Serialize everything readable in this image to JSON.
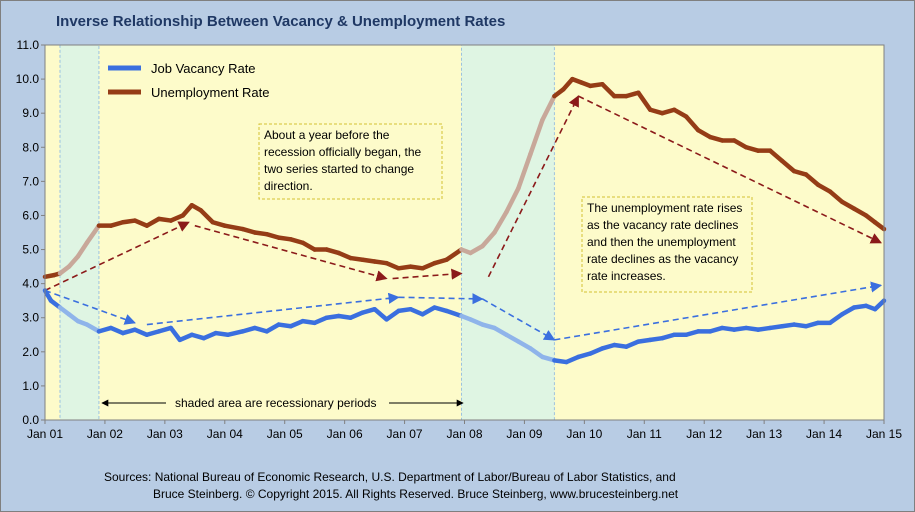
{
  "chart_data": {
    "type": "line",
    "title": "Inverse Relationship Between Vacancy & Unemployment Rates",
    "ylim": [
      0,
      11
    ],
    "y_ticks": [
      "0.0",
      "1.0",
      "2.0",
      "3.0",
      "4.0",
      "5.0",
      "6.0",
      "7.0",
      "8.0",
      "9.0",
      "10.0",
      "11.0"
    ],
    "x_ticks": [
      "Jan 01",
      "Jan 02",
      "Jan 03",
      "Jan 04",
      "Jan 05",
      "Jan 06",
      "Jan 07",
      "Jan 08",
      "Jan 09",
      "Jan 10",
      "Jan 11",
      "Jan 12",
      "Jan 13",
      "Jan 14",
      "Jan 15"
    ],
    "x_range": [
      2001.0,
      2015.0
    ],
    "recessions": [
      [
        2001.25,
        2001.9
      ],
      [
        2007.95,
        2009.5
      ]
    ],
    "series": [
      {
        "name": "Job Vacancy Rate",
        "color": "#3a6fdf",
        "recession_color": "#8fb4ea",
        "points": [
          [
            2001.0,
            3.8
          ],
          [
            2001.1,
            3.5
          ],
          [
            2001.25,
            3.3
          ],
          [
            2001.4,
            3.1
          ],
          [
            2001.55,
            2.9
          ],
          [
            2001.7,
            2.8
          ],
          [
            2001.9,
            2.6
          ],
          [
            2002.1,
            2.7
          ],
          [
            2002.3,
            2.55
          ],
          [
            2002.5,
            2.65
          ],
          [
            2002.7,
            2.5
          ],
          [
            2002.9,
            2.6
          ],
          [
            2003.1,
            2.7
          ],
          [
            2003.25,
            2.35
          ],
          [
            2003.45,
            2.5
          ],
          [
            2003.65,
            2.4
          ],
          [
            2003.85,
            2.55
          ],
          [
            2004.05,
            2.5
          ],
          [
            2004.3,
            2.6
          ],
          [
            2004.5,
            2.7
          ],
          [
            2004.7,
            2.6
          ],
          [
            2004.9,
            2.8
          ],
          [
            2005.1,
            2.75
          ],
          [
            2005.3,
            2.9
          ],
          [
            2005.5,
            2.85
          ],
          [
            2005.7,
            3.0
          ],
          [
            2005.9,
            3.05
          ],
          [
            2006.1,
            3.0
          ],
          [
            2006.3,
            3.15
          ],
          [
            2006.5,
            3.25
          ],
          [
            2006.7,
            2.95
          ],
          [
            2006.9,
            3.2
          ],
          [
            2007.1,
            3.25
          ],
          [
            2007.3,
            3.1
          ],
          [
            2007.5,
            3.3
          ],
          [
            2007.7,
            3.2
          ],
          [
            2007.95,
            3.05
          ],
          [
            2008.1,
            2.95
          ],
          [
            2008.3,
            2.8
          ],
          [
            2008.5,
            2.7
          ],
          [
            2008.7,
            2.5
          ],
          [
            2008.9,
            2.3
          ],
          [
            2009.1,
            2.1
          ],
          [
            2009.3,
            1.85
          ],
          [
            2009.5,
            1.75
          ],
          [
            2009.7,
            1.7
          ],
          [
            2009.9,
            1.85
          ],
          [
            2010.1,
            1.95
          ],
          [
            2010.3,
            2.1
          ],
          [
            2010.5,
            2.2
          ],
          [
            2010.7,
            2.15
          ],
          [
            2010.9,
            2.3
          ],
          [
            2011.1,
            2.35
          ],
          [
            2011.3,
            2.4
          ],
          [
            2011.5,
            2.5
          ],
          [
            2011.7,
            2.5
          ],
          [
            2011.9,
            2.6
          ],
          [
            2012.1,
            2.6
          ],
          [
            2012.3,
            2.7
          ],
          [
            2012.5,
            2.65
          ],
          [
            2012.7,
            2.7
          ],
          [
            2012.9,
            2.65
          ],
          [
            2013.1,
            2.7
          ],
          [
            2013.3,
            2.75
          ],
          [
            2013.5,
            2.8
          ],
          [
            2013.7,
            2.75
          ],
          [
            2013.9,
            2.85
          ],
          [
            2014.1,
            2.85
          ],
          [
            2014.3,
            3.1
          ],
          [
            2014.5,
            3.3
          ],
          [
            2014.7,
            3.35
          ],
          [
            2014.85,
            3.25
          ],
          [
            2015.0,
            3.5
          ]
        ]
      },
      {
        "name": "Unemployment Rate",
        "color": "#953c16",
        "recession_color": "#c8a89a",
        "points": [
          [
            2001.0,
            4.2
          ],
          [
            2001.15,
            4.25
          ],
          [
            2001.25,
            4.3
          ],
          [
            2001.4,
            4.5
          ],
          [
            2001.55,
            4.8
          ],
          [
            2001.7,
            5.2
          ],
          [
            2001.9,
            5.7
          ],
          [
            2002.1,
            5.7
          ],
          [
            2002.3,
            5.8
          ],
          [
            2002.5,
            5.85
          ],
          [
            2002.7,
            5.7
          ],
          [
            2002.9,
            5.9
          ],
          [
            2003.1,
            5.85
          ],
          [
            2003.3,
            6.0
          ],
          [
            2003.45,
            6.3
          ],
          [
            2003.6,
            6.15
          ],
          [
            2003.8,
            5.8
          ],
          [
            2004.0,
            5.7
          ],
          [
            2004.3,
            5.6
          ],
          [
            2004.5,
            5.5
          ],
          [
            2004.7,
            5.45
          ],
          [
            2004.9,
            5.35
          ],
          [
            2005.1,
            5.3
          ],
          [
            2005.3,
            5.2
          ],
          [
            2005.5,
            5.0
          ],
          [
            2005.7,
            5.0
          ],
          [
            2005.9,
            4.9
          ],
          [
            2006.1,
            4.75
          ],
          [
            2006.3,
            4.7
          ],
          [
            2006.5,
            4.65
          ],
          [
            2006.7,
            4.6
          ],
          [
            2006.9,
            4.45
          ],
          [
            2007.1,
            4.5
          ],
          [
            2007.3,
            4.45
          ],
          [
            2007.5,
            4.6
          ],
          [
            2007.7,
            4.7
          ],
          [
            2007.95,
            5.0
          ],
          [
            2008.1,
            4.9
          ],
          [
            2008.3,
            5.1
          ],
          [
            2008.5,
            5.5
          ],
          [
            2008.7,
            6.1
          ],
          [
            2008.9,
            6.8
          ],
          [
            2009.1,
            7.8
          ],
          [
            2009.3,
            8.8
          ],
          [
            2009.5,
            9.5
          ],
          [
            2009.65,
            9.7
          ],
          [
            2009.8,
            10.0
          ],
          [
            2009.95,
            9.9
          ],
          [
            2010.1,
            9.8
          ],
          [
            2010.3,
            9.85
          ],
          [
            2010.5,
            9.5
          ],
          [
            2010.7,
            9.5
          ],
          [
            2010.9,
            9.6
          ],
          [
            2011.1,
            9.1
          ],
          [
            2011.3,
            9.0
          ],
          [
            2011.5,
            9.1
          ],
          [
            2011.7,
            8.9
          ],
          [
            2011.9,
            8.5
          ],
          [
            2012.1,
            8.3
          ],
          [
            2012.3,
            8.2
          ],
          [
            2012.5,
            8.2
          ],
          [
            2012.7,
            8.0
          ],
          [
            2012.9,
            7.9
          ],
          [
            2013.1,
            7.9
          ],
          [
            2013.3,
            7.6
          ],
          [
            2013.5,
            7.3
          ],
          [
            2013.7,
            7.2
          ],
          [
            2013.9,
            6.9
          ],
          [
            2014.1,
            6.7
          ],
          [
            2014.3,
            6.4
          ],
          [
            2014.5,
            6.2
          ],
          [
            2014.7,
            6.0
          ],
          [
            2014.85,
            5.8
          ],
          [
            2015.0,
            5.6
          ]
        ]
      }
    ],
    "annotations": {
      "box1": [
        "About a year before the",
        "recession officially began, the",
        "two series started to change",
        "direction."
      ],
      "box2": [
        "The unemployment rate rises",
        "as the vacancy rate declines",
        "and then the unemployment",
        "rate declines as the vacancy",
        "rate increases."
      ],
      "shaded_note": "shaded area are recessionary periods"
    },
    "trend_arrows": {
      "unemployment": [
        [
          2001.0,
          3.8,
          2003.4,
          5.8
        ],
        [
          2003.5,
          5.7,
          2006.7,
          4.15
        ],
        [
          2006.8,
          4.15,
          2007.95,
          4.3
        ],
        [
          2008.4,
          4.2,
          2009.9,
          9.5
        ],
        [
          2009.9,
          9.5,
          2014.95,
          5.2
        ]
      ],
      "vacancy": [
        [
          2001.0,
          3.8,
          2002.5,
          2.85
        ],
        [
          2002.7,
          2.8,
          2006.9,
          3.6
        ],
        [
          2006.9,
          3.6,
          2008.3,
          3.55
        ],
        [
          2008.3,
          3.55,
          2009.5,
          2.35
        ],
        [
          2009.5,
          2.35,
          2014.95,
          3.95
        ]
      ]
    },
    "grid": false,
    "legend_placement": "top-left"
  },
  "sources": {
    "line1": "Sources: National Bureau of Economic Research, U.S. Department of Labor/Bureau of Labor Statistics, and",
    "line2": "Bruce Steinberg.  © Copyright 2015. All Rights Reserved. Bruce Steinberg, www.brucesteinberg.net"
  },
  "colors": {
    "plot_bg": "#fdfbca",
    "recession_bg": "#dff5e3",
    "frame_bg": "#b8cce4",
    "title": "#1f3864",
    "arrow_unemployment": "#8b1a1a",
    "arrow_vacancy": "#3a6fdf"
  }
}
